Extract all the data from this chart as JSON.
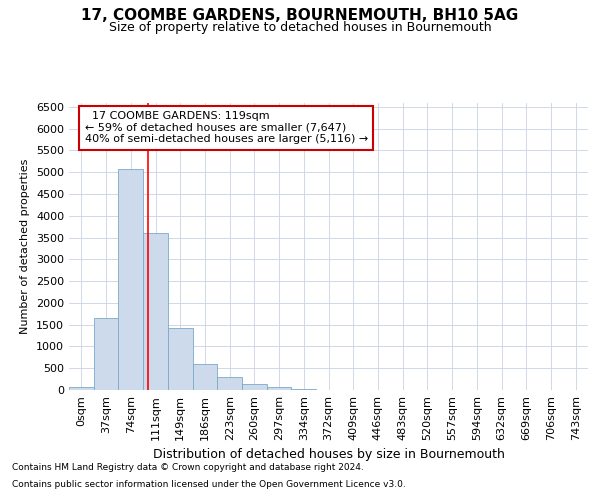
{
  "title": "17, COOMBE GARDENS, BOURNEMOUTH, BH10 5AG",
  "subtitle": "Size of property relative to detached houses in Bournemouth",
  "xlabel": "Distribution of detached houses by size in Bournemouth",
  "ylabel": "Number of detached properties",
  "bar_labels": [
    "0sqm",
    "37sqm",
    "74sqm",
    "111sqm",
    "149sqm",
    "186sqm",
    "223sqm",
    "260sqm",
    "297sqm",
    "334sqm",
    "372sqm",
    "409sqm",
    "446sqm",
    "483sqm",
    "520sqm",
    "557sqm",
    "594sqm",
    "632sqm",
    "669sqm",
    "706sqm",
    "743sqm"
  ],
  "bar_values": [
    75,
    1650,
    5080,
    3600,
    1420,
    600,
    290,
    140,
    75,
    30,
    5,
    5,
    3,
    0,
    0,
    0,
    0,
    0,
    0,
    0,
    0
  ],
  "bar_color": "#ccdaeb",
  "bar_edge_color": "#7aaac8",
  "grid_color": "#d0d8e8",
  "ylim": [
    0,
    6600
  ],
  "yticks": [
    0,
    500,
    1000,
    1500,
    2000,
    2500,
    3000,
    3500,
    4000,
    4500,
    5000,
    5500,
    6000,
    6500
  ],
  "annotation_text": "  17 COOMBE GARDENS: 119sqm\n← 59% of detached houses are smaller (7,647)\n40% of semi-detached houses are larger (5,116) →",
  "annotation_box_color": "#ffffff",
  "annotation_box_edge": "#cc0000",
  "footer1": "Contains HM Land Registry data © Crown copyright and database right 2024.",
  "footer2": "Contains public sector information licensed under the Open Government Licence v3.0.",
  "title_fontsize": 11,
  "subtitle_fontsize": 9,
  "ylabel_fontsize": 8,
  "xlabel_fontsize": 9,
  "tick_fontsize": 8,
  "footer_fontsize": 6.5
}
